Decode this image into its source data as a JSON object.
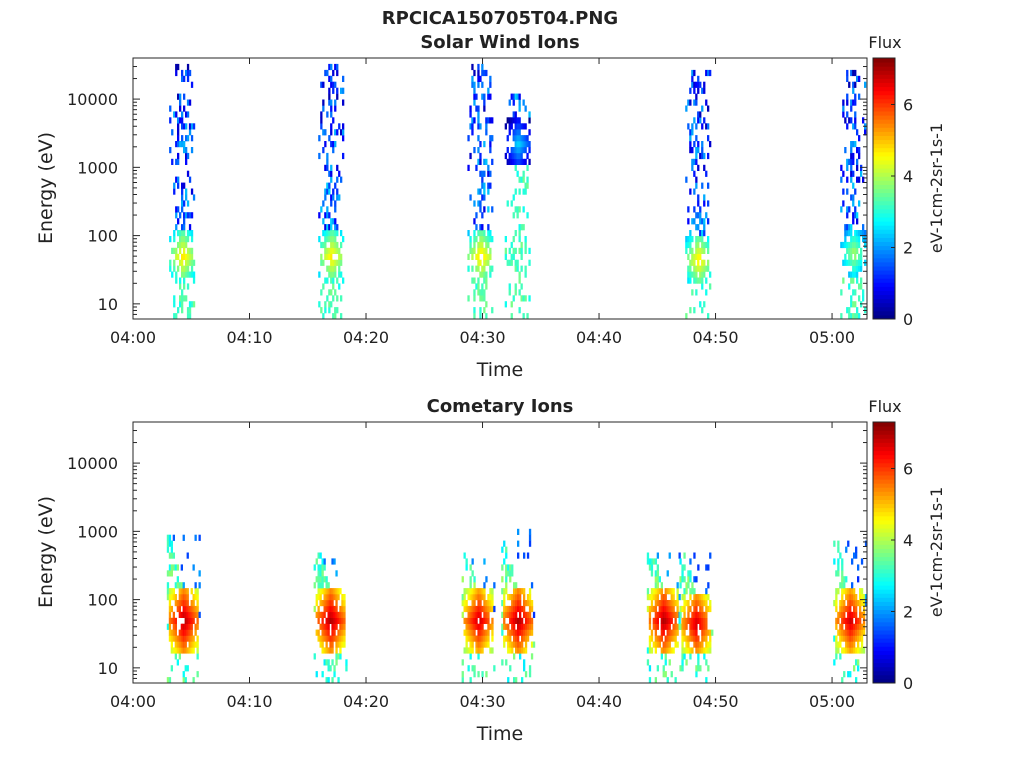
{
  "chart_data": {
    "figure_title": "RPCICA150705T04.PNG",
    "x_tick_labels": [
      "04:00",
      "04:10",
      "04:20",
      "04:30",
      "04:40",
      "04:50",
      "05:00"
    ],
    "x_range_minutes": [
      0,
      63
    ],
    "y_tick_values": [
      10,
      100,
      1000,
      10000
    ],
    "y_tick_labels": [
      "10",
      "100",
      "1000",
      "10000"
    ],
    "y_range": [
      6,
      40000
    ],
    "xlabel": "Time",
    "ylabel": "Energy (eV)",
    "colorbar": {
      "title": "Flux",
      "label": "eV-1cm-2sr-1s-1",
      "range": [
        0,
        7.3
      ],
      "ticks": [
        0,
        2,
        4,
        6
      ],
      "colormap": "jet"
    },
    "panels": [
      {
        "type": "heatmap",
        "title": "Solar Wind Ions",
        "bursts": [
          {
            "time_min": 4.2,
            "core_energy": 45,
            "core_flux": 4.8,
            "max_energy": 30000
          },
          {
            "time_min": 17.0,
            "core_energy": 45,
            "core_flux": 4.8,
            "max_energy": 30000
          },
          {
            "time_min": 29.8,
            "core_energy": 45,
            "core_flux": 4.9,
            "max_energy": 30000
          },
          {
            "time_min": 33.0,
            "core_energy": 2000,
            "core_flux": 2.5,
            "max_energy": 10000
          },
          {
            "time_min": 48.5,
            "core_energy": 40,
            "core_flux": 4.8,
            "max_energy": 25000
          },
          {
            "time_min": 61.8,
            "core_energy": 50,
            "core_flux": 4.0,
            "max_energy": 25000
          }
        ]
      },
      {
        "type": "heatmap",
        "title": "Cometary Ions",
        "bursts": [
          {
            "time_min": 4.3,
            "core_energy": 45,
            "core_flux": 7.0,
            "max_energy": 1100
          },
          {
            "time_min": 16.9,
            "core_energy": 45,
            "core_flux": 7.0,
            "max_energy": 450
          },
          {
            "time_min": 29.6,
            "core_energy": 45,
            "core_flux": 6.8,
            "max_energy": 450
          },
          {
            "time_min": 33.0,
            "core_energy": 45,
            "core_flux": 7.0,
            "max_energy": 900
          },
          {
            "time_min": 45.5,
            "core_energy": 45,
            "core_flux": 7.0,
            "max_energy": 450
          },
          {
            "time_min": 48.3,
            "core_energy": 40,
            "core_flux": 6.8,
            "max_energy": 450
          },
          {
            "time_min": 61.5,
            "core_energy": 45,
            "core_flux": 6.8,
            "max_energy": 600
          }
        ]
      }
    ]
  }
}
